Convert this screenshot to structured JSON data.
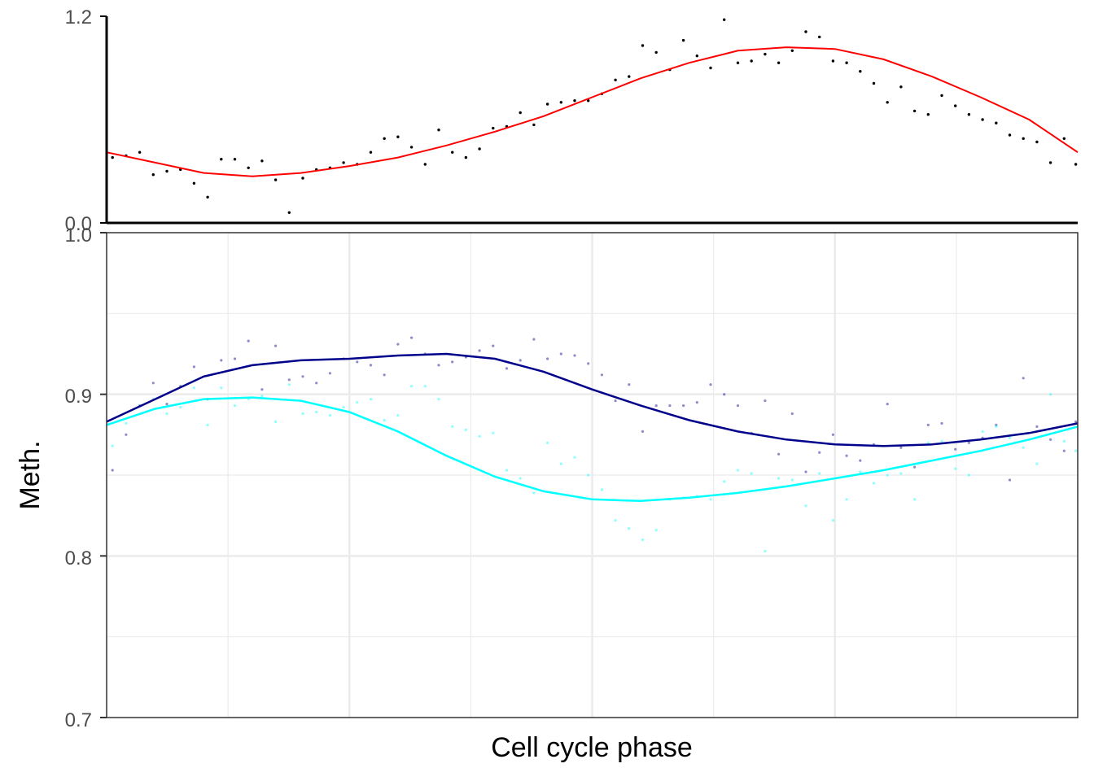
{
  "chart_data": [
    {
      "type": "scatter",
      "title": "",
      "xlabel": "",
      "ylabel": "",
      "xlim": [
        0,
        1
      ],
      "ylim": [
        0,
        1.2
      ],
      "y_ticks": [
        0,
        1.2
      ],
      "y_tick_labels": [
        "0.0",
        "1.2"
      ],
      "grid": false,
      "colors": {
        "points": "#000000",
        "smooth": "#ff0000",
        "axis": "#000000"
      },
      "series": [
        {
          "kind": "points",
          "x": [
            0.006,
            0.02,
            0.034,
            0.048,
            0.062,
            0.076,
            0.09,
            0.104,
            0.118,
            0.132,
            0.146,
            0.16,
            0.174,
            0.188,
            0.202,
            0.216,
            0.23,
            0.244,
            0.258,
            0.272,
            0.286,
            0.3,
            0.314,
            0.328,
            0.342,
            0.356,
            0.37,
            0.384,
            0.398,
            0.412,
            0.426,
            0.44,
            0.454,
            0.468,
            0.482,
            0.496,
            0.51,
            0.524,
            0.538,
            0.552,
            0.566,
            0.58,
            0.594,
            0.608,
            0.622,
            0.636,
            0.65,
            0.664,
            0.678,
            0.692,
            0.706,
            0.72,
            0.734,
            0.748,
            0.762,
            0.776,
            0.79,
            0.804,
            0.818,
            0.832,
            0.846,
            0.86,
            0.874,
            0.888,
            0.902,
            0.916,
            0.93,
            0.944,
            0.958,
            0.972,
            0.986,
            0.998
          ],
          "y": [
            0.38,
            0.39,
            0.41,
            0.28,
            0.3,
            0.31,
            0.23,
            0.15,
            0.37,
            0.37,
            0.32,
            0.36,
            0.25,
            0.06,
            0.26,
            0.31,
            0.32,
            0.35,
            0.34,
            0.41,
            0.49,
            0.5,
            0.44,
            0.34,
            0.54,
            0.41,
            0.38,
            0.43,
            0.55,
            0.56,
            0.64,
            0.57,
            0.69,
            0.7,
            0.71,
            0.71,
            0.75,
            0.83,
            0.85,
            1.03,
            0.99,
            0.89,
            1.06,
            0.97,
            0.9,
            1.18,
            0.93,
            0.94,
            0.98,
            0.93,
            1.0,
            1.11,
            1.08,
            0.94,
            0.93,
            0.88,
            0.81,
            0.7,
            0.79,
            0.65,
            0.63,
            0.74,
            0.68,
            0.63,
            0.6,
            0.58,
            0.51,
            0.49,
            0.47,
            0.35,
            0.49,
            0.34
          ]
        },
        {
          "kind": "smooth",
          "x": [
            0,
            0.05,
            0.1,
            0.15,
            0.2,
            0.25,
            0.3,
            0.35,
            0.4,
            0.45,
            0.5,
            0.55,
            0.6,
            0.65,
            0.7,
            0.75,
            0.8,
            0.85,
            0.9,
            0.95,
            1.0
          ],
          "y": [
            0.41,
            0.35,
            0.29,
            0.27,
            0.29,
            0.33,
            0.38,
            0.45,
            0.53,
            0.62,
            0.73,
            0.84,
            0.93,
            1.0,
            1.02,
            1.01,
            0.95,
            0.85,
            0.73,
            0.6,
            0.41
          ]
        }
      ]
    },
    {
      "type": "scatter",
      "title": "",
      "xlabel": "Cell cycle phase",
      "ylabel": "Meth.",
      "xlim": [
        0,
        1
      ],
      "ylim": [
        0.7,
        1.0
      ],
      "y_ticks": [
        0.7,
        0.8,
        0.9,
        1.0
      ],
      "y_tick_labels": [
        "0.7",
        "0.8",
        "0.9",
        "1.0"
      ],
      "grid": true,
      "colors": {
        "dark": "#00008b",
        "light": "#00ffff",
        "grid": "#ebebeb",
        "panel_border": "#333333"
      },
      "series": [
        {
          "kind": "points",
          "color": "#00008b",
          "x": [
            0.006,
            0.02,
            0.034,
            0.048,
            0.062,
            0.076,
            0.09,
            0.104,
            0.118,
            0.132,
            0.146,
            0.16,
            0.174,
            0.188,
            0.202,
            0.216,
            0.23,
            0.244,
            0.258,
            0.272,
            0.286,
            0.3,
            0.314,
            0.328,
            0.342,
            0.356,
            0.37,
            0.384,
            0.398,
            0.412,
            0.426,
            0.44,
            0.454,
            0.468,
            0.482,
            0.496,
            0.51,
            0.524,
            0.538,
            0.552,
            0.566,
            0.58,
            0.594,
            0.608,
            0.622,
            0.636,
            0.65,
            0.664,
            0.678,
            0.692,
            0.706,
            0.72,
            0.734,
            0.748,
            0.762,
            0.776,
            0.79,
            0.804,
            0.818,
            0.832,
            0.846,
            0.86,
            0.874,
            0.888,
            0.902,
            0.916,
            0.93,
            0.944,
            0.958,
            0.972,
            0.986,
            0.998
          ],
          "y": [
            0.853,
            0.875,
            0.893,
            0.907,
            0.894,
            0.905,
            0.917,
            0.897,
            0.921,
            0.922,
            0.933,
            0.903,
            0.93,
            0.909,
            0.911,
            0.907,
            0.913,
            0.922,
            0.92,
            0.918,
            0.912,
            0.931,
            0.935,
            0.925,
            0.918,
            0.92,
            0.923,
            0.927,
            0.93,
            0.916,
            0.921,
            0.934,
            0.922,
            0.925,
            0.924,
            0.919,
            0.912,
            0.896,
            0.906,
            0.877,
            0.893,
            0.893,
            0.893,
            0.895,
            0.906,
            0.9,
            0.893,
            0.876,
            0.896,
            0.863,
            0.888,
            0.852,
            0.864,
            0.875,
            0.862,
            0.859,
            0.869,
            0.894,
            0.867,
            0.855,
            0.881,
            0.882,
            0.866,
            0.87,
            0.873,
            0.881,
            0.847,
            0.91,
            0.88,
            0.872,
            0.865,
            0.883
          ]
        },
        {
          "kind": "points",
          "color": "#00ffff",
          "x": [
            0.006,
            0.02,
            0.034,
            0.048,
            0.062,
            0.076,
            0.09,
            0.104,
            0.118,
            0.132,
            0.146,
            0.16,
            0.174,
            0.188,
            0.202,
            0.216,
            0.23,
            0.244,
            0.258,
            0.272,
            0.286,
            0.3,
            0.314,
            0.328,
            0.342,
            0.356,
            0.37,
            0.384,
            0.398,
            0.412,
            0.426,
            0.44,
            0.454,
            0.468,
            0.482,
            0.496,
            0.51,
            0.524,
            0.538,
            0.552,
            0.566,
            0.58,
            0.594,
            0.608,
            0.622,
            0.636,
            0.65,
            0.664,
            0.678,
            0.692,
            0.706,
            0.72,
            0.734,
            0.748,
            0.762,
            0.776,
            0.79,
            0.804,
            0.818,
            0.832,
            0.846,
            0.86,
            0.874,
            0.888,
            0.902,
            0.916,
            0.93,
            0.944,
            0.958,
            0.972,
            0.986,
            0.998
          ],
          "y": [
            0.868,
            0.882,
            0.893,
            0.897,
            0.888,
            0.892,
            0.904,
            0.881,
            0.904,
            0.893,
            0.897,
            0.899,
            0.883,
            0.906,
            0.888,
            0.889,
            0.887,
            0.892,
            0.895,
            0.897,
            0.884,
            0.887,
            0.905,
            0.905,
            0.897,
            0.88,
            0.878,
            0.874,
            0.876,
            0.853,
            0.848,
            0.839,
            0.87,
            0.857,
            0.861,
            0.85,
            0.841,
            0.822,
            0.817,
            0.81,
            0.816,
            0.835,
            0.836,
            0.837,
            0.835,
            0.846,
            0.853,
            0.851,
            0.803,
            0.848,
            0.847,
            0.831,
            0.851,
            0.822,
            0.835,
            0.852,
            0.845,
            0.85,
            0.851,
            0.835,
            0.87,
            0.871,
            0.854,
            0.85,
            0.877,
            0.88,
            0.873,
            0.867,
            0.857,
            0.9,
            0.871,
            0.865
          ]
        },
        {
          "kind": "smooth",
          "color": "#00008b",
          "x": [
            0,
            0.05,
            0.1,
            0.15,
            0.2,
            0.25,
            0.3,
            0.35,
            0.4,
            0.45,
            0.5,
            0.55,
            0.6,
            0.65,
            0.7,
            0.75,
            0.8,
            0.85,
            0.9,
            0.95,
            1.0
          ],
          "y": [
            0.883,
            0.897,
            0.911,
            0.918,
            0.921,
            0.922,
            0.924,
            0.925,
            0.922,
            0.914,
            0.903,
            0.893,
            0.884,
            0.877,
            0.872,
            0.869,
            0.868,
            0.869,
            0.872,
            0.876,
            0.882
          ]
        },
        {
          "kind": "smooth",
          "color": "#00ffff",
          "x": [
            0,
            0.05,
            0.1,
            0.15,
            0.2,
            0.25,
            0.3,
            0.35,
            0.4,
            0.45,
            0.5,
            0.55,
            0.6,
            0.65,
            0.7,
            0.75,
            0.8,
            0.85,
            0.9,
            0.95,
            1.0
          ],
          "y": [
            0.881,
            0.891,
            0.897,
            0.898,
            0.896,
            0.889,
            0.877,
            0.862,
            0.849,
            0.84,
            0.835,
            0.834,
            0.836,
            0.839,
            0.843,
            0.848,
            0.853,
            0.859,
            0.865,
            0.872,
            0.88
          ]
        }
      ]
    }
  ]
}
